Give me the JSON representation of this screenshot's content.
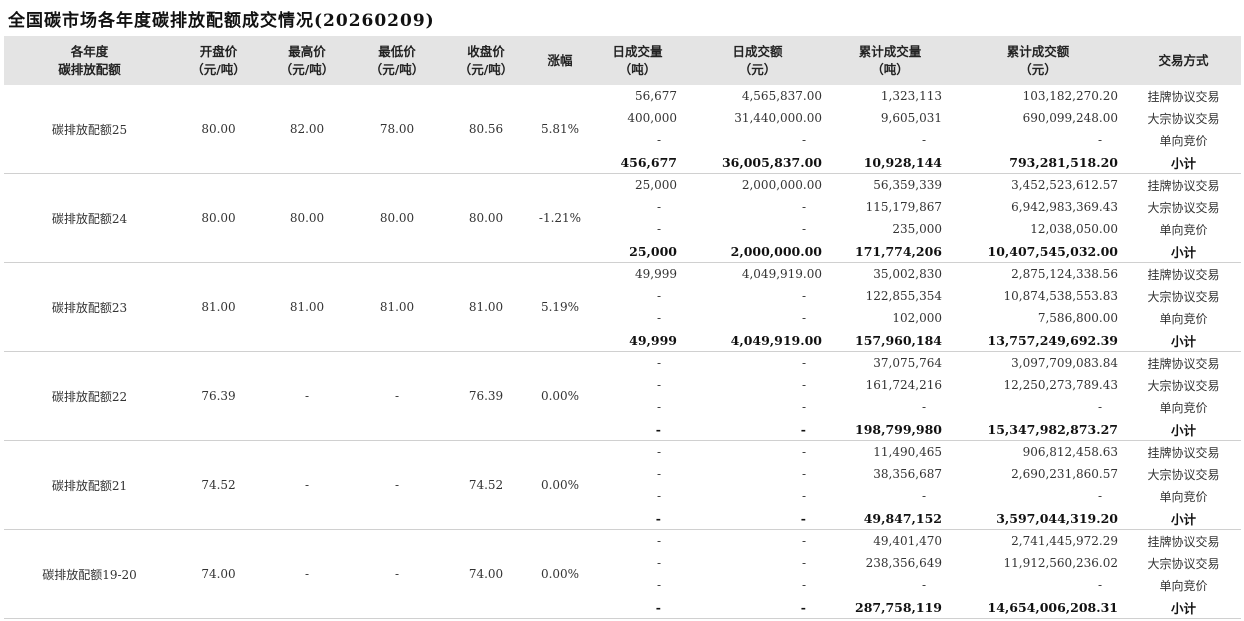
{
  "title": "全国碳市场各年度碳排放配额成交情况(20260209)",
  "headers": [
    "各年度\n碳排放配额",
    "开盘价\n（元/吨）",
    "最高价\n（元/吨）",
    "最低价\n（元/吨）",
    "收盘价\n（元/吨）",
    "涨幅",
    "日成交量\n（吨）",
    "日成交额\n（元）",
    "累计成交量\n（吨）",
    "累计成交额\n（元）",
    "交易方式"
  ],
  "groups": [
    {
      "name": "碳排放配额25",
      "open": "80.00",
      "high": "82.00",
      "low": "78.00",
      "close": "80.56",
      "change": "5.81%",
      "rows": [
        [
          "56,677",
          "4,565,837.00",
          "1,323,113",
          "103,182,270.20",
          "挂牌协议交易"
        ],
        [
          "400,000",
          "31,440,000.00",
          "9,605,031",
          "690,099,248.00",
          "大宗协议交易"
        ],
        [
          "-",
          "-",
          "-",
          "-",
          "单向竞价"
        ],
        [
          "456,677",
          "36,005,837.00",
          "10,928,144",
          "793,281,518.20",
          "小计"
        ]
      ]
    },
    {
      "name": "碳排放配额24",
      "open": "80.00",
      "high": "80.00",
      "low": "80.00",
      "close": "80.00",
      "change": "-1.21%",
      "rows": [
        [
          "25,000",
          "2,000,000.00",
          "56,359,339",
          "3,452,523,612.57",
          "挂牌协议交易"
        ],
        [
          "-",
          "-",
          "115,179,867",
          "6,942,983,369.43",
          "大宗协议交易"
        ],
        [
          "-",
          "-",
          "235,000",
          "12,038,050.00",
          "单向竞价"
        ],
        [
          "25,000",
          "2,000,000.00",
          "171,774,206",
          "10,407,545,032.00",
          "小计"
        ]
      ]
    },
    {
      "name": "碳排放配额23",
      "open": "81.00",
      "high": "81.00",
      "low": "81.00",
      "close": "81.00",
      "change": "5.19%",
      "rows": [
        [
          "49,999",
          "4,049,919.00",
          "35,002,830",
          "2,875,124,338.56",
          "挂牌协议交易"
        ],
        [
          "-",
          "-",
          "122,855,354",
          "10,874,538,553.83",
          "大宗协议交易"
        ],
        [
          "-",
          "-",
          "102,000",
          "7,586,800.00",
          "单向竞价"
        ],
        [
          "49,999",
          "4,049,919.00",
          "157,960,184",
          "13,757,249,692.39",
          "小计"
        ]
      ]
    },
    {
      "name": "碳排放配额22",
      "open": "76.39",
      "high": "-",
      "low": "-",
      "close": "76.39",
      "change": "0.00%",
      "rows": [
        [
          "-",
          "-",
          "37,075,764",
          "3,097,709,083.84",
          "挂牌协议交易"
        ],
        [
          "-",
          "-",
          "161,724,216",
          "12,250,273,789.43",
          "大宗协议交易"
        ],
        [
          "-",
          "-",
          "-",
          "-",
          "单向竞价"
        ],
        [
          "-",
          "-",
          "198,799,980",
          "15,347,982,873.27",
          "小计"
        ]
      ]
    },
    {
      "name": "碳排放配额21",
      "open": "74.52",
      "high": "-",
      "low": "-",
      "close": "74.52",
      "change": "0.00%",
      "rows": [
        [
          "-",
          "-",
          "11,490,465",
          "906,812,458.63",
          "挂牌协议交易"
        ],
        [
          "-",
          "-",
          "38,356,687",
          "2,690,231,860.57",
          "大宗协议交易"
        ],
        [
          "-",
          "-",
          "-",
          "-",
          "单向竞价"
        ],
        [
          "-",
          "-",
          "49,847,152",
          "3,597,044,319.20",
          "小计"
        ]
      ]
    },
    {
      "name": "碳排放配额19-20",
      "open": "74.00",
      "high": "-",
      "low": "-",
      "close": "74.00",
      "change": "0.00%",
      "rows": [
        [
          "-",
          "-",
          "49,401,470",
          "2,741,445,972.29",
          "挂牌协议交易"
        ],
        [
          "-",
          "-",
          "238,356,649",
          "11,912,560,236.02",
          "大宗协议交易"
        ],
        [
          "-",
          "-",
          "-",
          "-",
          "单向竞价"
        ],
        [
          "-",
          "-",
          "287,758,119",
          "14,654,006,208.31",
          "小计"
        ]
      ]
    }
  ]
}
